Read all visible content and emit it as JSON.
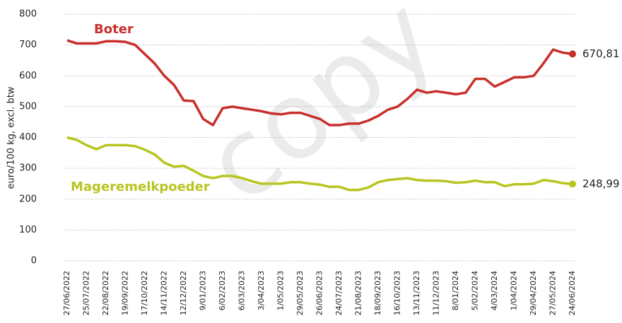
{
  "chart_data": {
    "type": "line",
    "y_label": "euro/100 kg, excl. btw",
    "watermark": "copy",
    "categories": [
      "27/06/2022",
      null,
      "25/07/2022",
      null,
      "22/08/2022",
      null,
      "19/09/2022",
      null,
      "17/10/2022",
      null,
      "14/11/2022",
      null,
      "12/12/2022",
      null,
      "9/01/2023",
      null,
      "6/02/2023",
      null,
      "6/03/2023",
      null,
      "3/04/2023",
      null,
      "1/05/2023",
      null,
      "29/05/2023",
      null,
      "26/06/2023",
      null,
      "24/07/2023",
      null,
      "21/08/2023",
      null,
      "18/09/2023",
      null,
      "16/10/2023",
      null,
      "13/11/2023",
      null,
      "11/12/2023",
      null,
      "8/01/2024",
      null,
      "5/02/2024",
      null,
      "4/03/2024",
      null,
      "1/04/2024",
      null,
      "29/04/2024",
      null,
      "27/05/2024",
      null,
      "24/06/2024"
    ],
    "series": [
      {
        "name": "Boter",
        "color": "#c8302b",
        "values": [
          715,
          705,
          705,
          705,
          712,
          712,
          710,
          700,
          670,
          640,
          600,
          570,
          520,
          518,
          460,
          440,
          495,
          500,
          495,
          490,
          485,
          478,
          475,
          480,
          480,
          470,
          460,
          440,
          440,
          445,
          445,
          455,
          470,
          490,
          500,
          525,
          555,
          545,
          550,
          545,
          540,
          545,
          590,
          590,
          565,
          580,
          595,
          595,
          600,
          640,
          685,
          675,
          670.81
        ],
        "value_labels": [
          null,
          null,
          null,
          null,
          null,
          null,
          null,
          null,
          null,
          null,
          null,
          null,
          null,
          null,
          null,
          null,
          null,
          null,
          null,
          null,
          null,
          null,
          null,
          null,
          null,
          null,
          null,
          null,
          null,
          null,
          null,
          null,
          null,
          null,
          null,
          null,
          null,
          null,
          null,
          null,
          null,
          null,
          null,
          null,
          null,
          null,
          null,
          null,
          null,
          null,
          null,
          null,
          "670,81"
        ]
      },
      {
        "name": "Mageremelkpoeder",
        "color": "#b8c520",
        "values": [
          400,
          392,
          375,
          362,
          375,
          375,
          375,
          372,
          360,
          345,
          318,
          305,
          308,
          292,
          275,
          268,
          275,
          275,
          268,
          258,
          250,
          250,
          250,
          255,
          255,
          250,
          247,
          240,
          240,
          230,
          230,
          238,
          255,
          262,
          265,
          268,
          262,
          260,
          260,
          258,
          253,
          255,
          260,
          255,
          255,
          242,
          248,
          248,
          250,
          262,
          258,
          252,
          248.99
        ],
        "value_labels": [
          null,
          null,
          null,
          null,
          null,
          null,
          null,
          null,
          null,
          null,
          null,
          null,
          null,
          null,
          null,
          null,
          null,
          null,
          null,
          null,
          null,
          null,
          null,
          null,
          null,
          null,
          null,
          null,
          null,
          null,
          null,
          null,
          null,
          null,
          null,
          null,
          null,
          null,
          null,
          null,
          null,
          null,
          null,
          null,
          null,
          null,
          null,
          null,
          null,
          null,
          null,
          null,
          "248,99"
        ]
      }
    ],
    "ylim": [
      0,
      800
    ],
    "yticks": [
      0,
      100,
      200,
      300,
      400,
      500,
      600,
      700,
      800
    ],
    "grid": true
  }
}
